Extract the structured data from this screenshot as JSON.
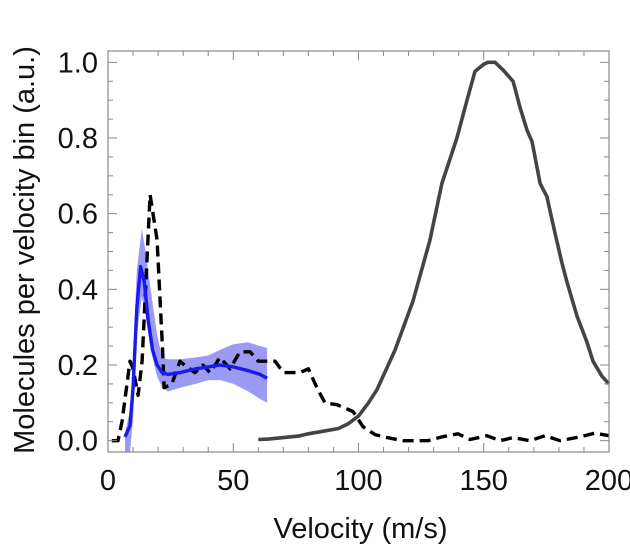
{
  "chart_data": {
    "type": "line",
    "title": "",
    "xlabel": "Velocity (m/s)",
    "ylabel": "Molecules per velocity bin (a.u.)",
    "xlim": [
      0,
      200
    ],
    "ylim": [
      -0.03,
      1.03
    ],
    "xticks": [
      0,
      50,
      100,
      150,
      200
    ],
    "xtick_labels": [
      "0",
      "50",
      "100",
      "150",
      "200"
    ],
    "yticks": [
      0.0,
      0.2,
      0.4,
      0.6,
      0.8,
      1.0
    ],
    "ytick_labels": [
      "0.0",
      "0.2",
      "0.4",
      "0.6",
      "0.8",
      "1.0"
    ],
    "x_minor_step": 10,
    "y_minor_step": 0.05,
    "grid": false,
    "legend": null,
    "colors": {
      "gray_series": "#444444",
      "dashed_series": "#000000",
      "blue_series": "#1a1aee",
      "blue_band": "#9b9bf4",
      "frame": "#888888"
    },
    "series": [
      {
        "name": "gray-solid",
        "style": "solid",
        "x": [
          60,
          64,
          70,
          76,
          80,
          86,
          92,
          96,
          100,
          104,
          107.4,
          114.6,
          121.8,
          128.5,
          133.3,
          139.3,
          143.3,
          146.5,
          150,
          151.7,
          154.5,
          157.7,
          161.7,
          164.5,
          167.3,
          169.3,
          172.5,
          175.2,
          178.4,
          181.2,
          183.2,
          187.2,
          191.2,
          193.6,
          197.2,
          200
        ],
        "y": [
          0.003,
          0.004,
          0.008,
          0.012,
          0.018,
          0.025,
          0.032,
          0.045,
          0.065,
          0.1,
          0.135,
          0.24,
          0.37,
          0.53,
          0.68,
          0.8,
          0.9,
          0.976,
          0.995,
          1.0,
          1.0,
          0.98,
          0.95,
          0.88,
          0.82,
          0.79,
          0.68,
          0.645,
          0.55,
          0.47,
          0.42,
          0.33,
          0.26,
          0.21,
          0.17,
          0.15
        ]
      },
      {
        "name": "black-dashed",
        "style": "dashed",
        "x": [
          1.5,
          4,
          5.6,
          7.6,
          8.8,
          10,
          12,
          13.6,
          16.8,
          19.6,
          20.8,
          21.8,
          22.4,
          25.5,
          28.7,
          31.5,
          34.7,
          37.9,
          40.7,
          44.7,
          48.7,
          52.7,
          56.7,
          60,
          66.7,
          70,
          74,
          76.6,
          80,
          83.4,
          86.6,
          91.4,
          97.8,
          101.8,
          106.6,
          111.4,
          117.8,
          127.7,
          133.3,
          139.7,
          144.5,
          151.3,
          156.5,
          161.7,
          168.5,
          174.5,
          180.4,
          188.4,
          194.4,
          200
        ],
        "y": [
          0.0,
          0.0,
          0.05,
          0.15,
          0.21,
          0.19,
          0.12,
          0.21,
          0.65,
          0.53,
          0.37,
          0.24,
          0.14,
          0.15,
          0.21,
          0.195,
          0.18,
          0.2,
          0.18,
          0.22,
          0.19,
          0.235,
          0.235,
          0.21,
          0.21,
          0.18,
          0.18,
          0.18,
          0.19,
          0.14,
          0.1,
          0.095,
          0.077,
          0.037,
          0.016,
          0.008,
          0.0,
          0.0,
          0.01,
          0.018,
          0.003,
          0.013,
          0.0,
          0.008,
          0.0,
          0.013,
          0.0,
          0.01,
          0.02,
          0.013
        ]
      },
      {
        "name": "blue-solid",
        "style": "solid",
        "x": [
          6.8,
          8.8,
          10,
          11.5,
          13,
          14.5,
          16,
          17.8,
          19.6,
          21.6,
          24,
          28.7,
          35,
          40,
          44.7,
          50,
          56,
          60.7,
          63.5
        ],
        "y": [
          0.01,
          0.04,
          0.14,
          0.35,
          0.46,
          0.42,
          0.32,
          0.24,
          0.2,
          0.18,
          0.175,
          0.18,
          0.19,
          0.195,
          0.2,
          0.195,
          0.185,
          0.175,
          0.165
        ]
      }
    ],
    "bands": [
      {
        "name": "blue-confidence-band",
        "x": [
          6.8,
          8.8,
          10,
          11.5,
          13.5,
          15,
          17,
          19.6,
          21.6,
          24,
          28.7,
          35,
          40,
          44.7,
          50,
          56,
          60.7,
          63.5
        ],
        "upper": [
          0.02,
          0.08,
          0.22,
          0.45,
          0.56,
          0.5,
          0.4,
          0.28,
          0.22,
          0.215,
          0.215,
          0.22,
          0.225,
          0.24,
          0.255,
          0.26,
          0.25,
          0.245
        ],
        "lower": [
          -0.03,
          -0.03,
          0.06,
          0.28,
          0.38,
          0.33,
          0.24,
          0.17,
          0.14,
          0.13,
          0.14,
          0.15,
          0.16,
          0.16,
          0.15,
          0.13,
          0.11,
          0.1
        ]
      }
    ]
  }
}
